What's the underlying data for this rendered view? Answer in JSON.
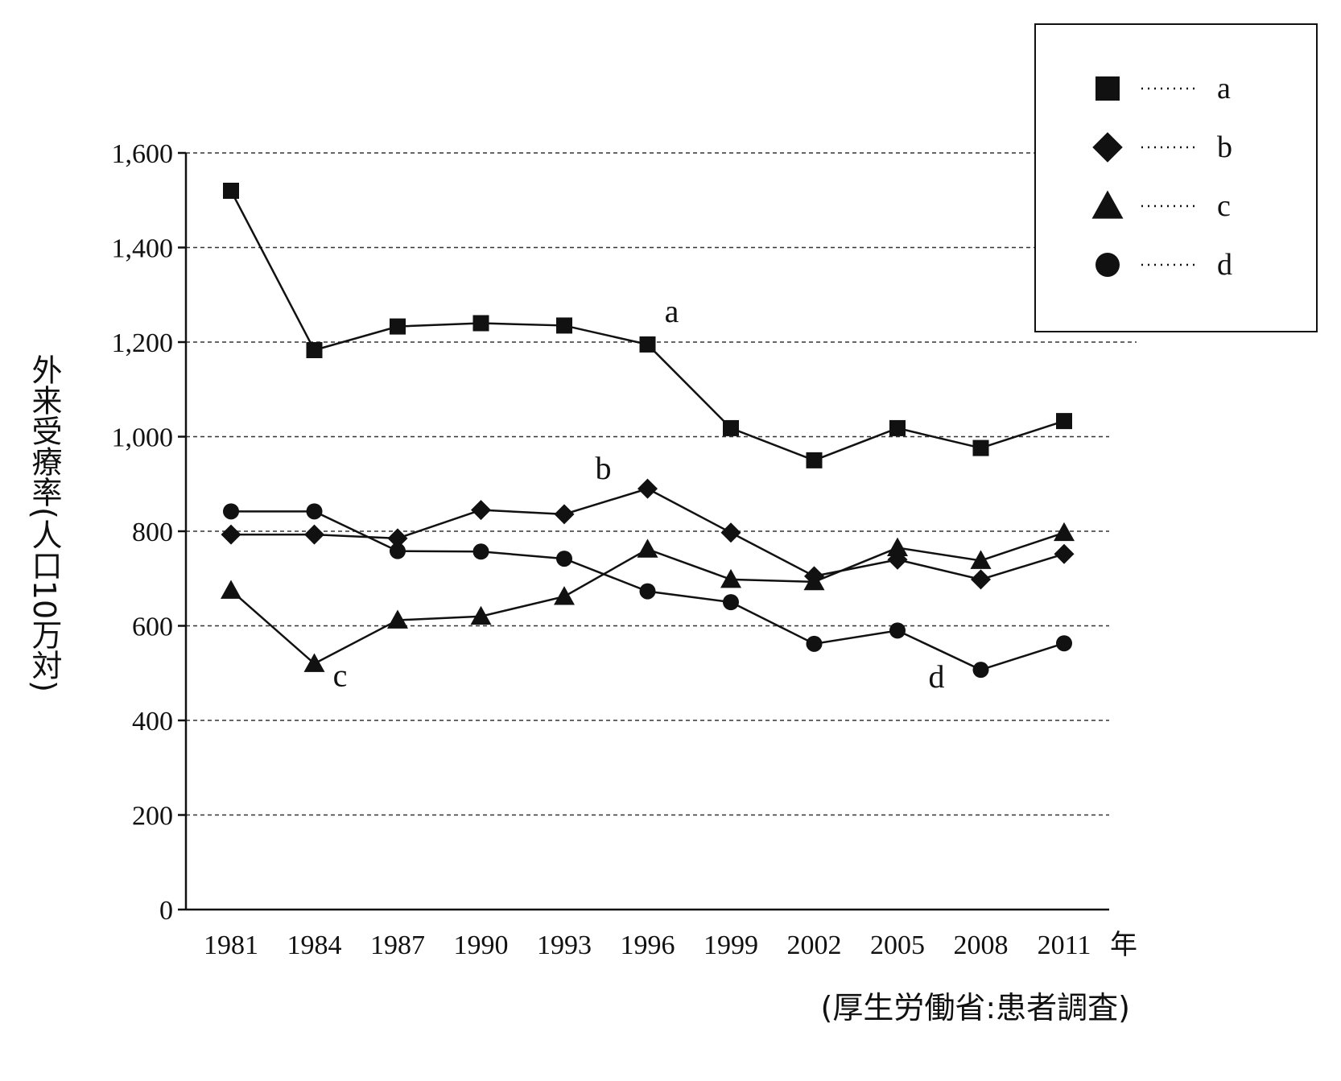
{
  "chart_data": {
    "type": "line",
    "xlabel_unit": "年",
    "ylabel": "外来受療率(人口10万対)",
    "source": "(厚生労働省:患者調査)",
    "x": [
      "1981",
      "1984",
      "1987",
      "1990",
      "1993",
      "1996",
      "1999",
      "2002",
      "2005",
      "2008",
      "2011"
    ],
    "ylim": [
      0,
      1600
    ],
    "yticks": [
      0,
      200,
      400,
      600,
      800,
      1000,
      1200,
      1400,
      1600
    ],
    "ytick_labels": [
      "0",
      "200",
      "400",
      "600",
      "800",
      "1,000",
      "1,200",
      "1,400",
      "1,600"
    ],
    "grid": true,
    "legend_position": "top-right",
    "series": [
      {
        "name": "a",
        "marker": "square",
        "values": [
          1520,
          1183,
          1233,
          1240,
          1235,
          1195,
          1018,
          950,
          1018,
          976,
          1033
        ]
      },
      {
        "name": "b",
        "marker": "diamond",
        "values": [
          793,
          793,
          785,
          845,
          836,
          890,
          797,
          705,
          740,
          698,
          752
        ]
      },
      {
        "name": "c",
        "marker": "triangle",
        "values": [
          675,
          520,
          612,
          620,
          662,
          762,
          698,
          693,
          765,
          738,
          797
        ]
      },
      {
        "name": "d",
        "marker": "circle",
        "values": [
          842,
          842,
          758,
          757,
          742,
          673,
          650,
          562,
          590,
          507,
          563
        ]
      }
    ],
    "annotations": [
      {
        "text": "a",
        "series": "a",
        "index": 5
      },
      {
        "text": "b",
        "series": "b",
        "index": 5
      },
      {
        "text": "c",
        "series": "c",
        "index": 1
      },
      {
        "text": "d",
        "series": "d",
        "index": 9
      }
    ]
  }
}
